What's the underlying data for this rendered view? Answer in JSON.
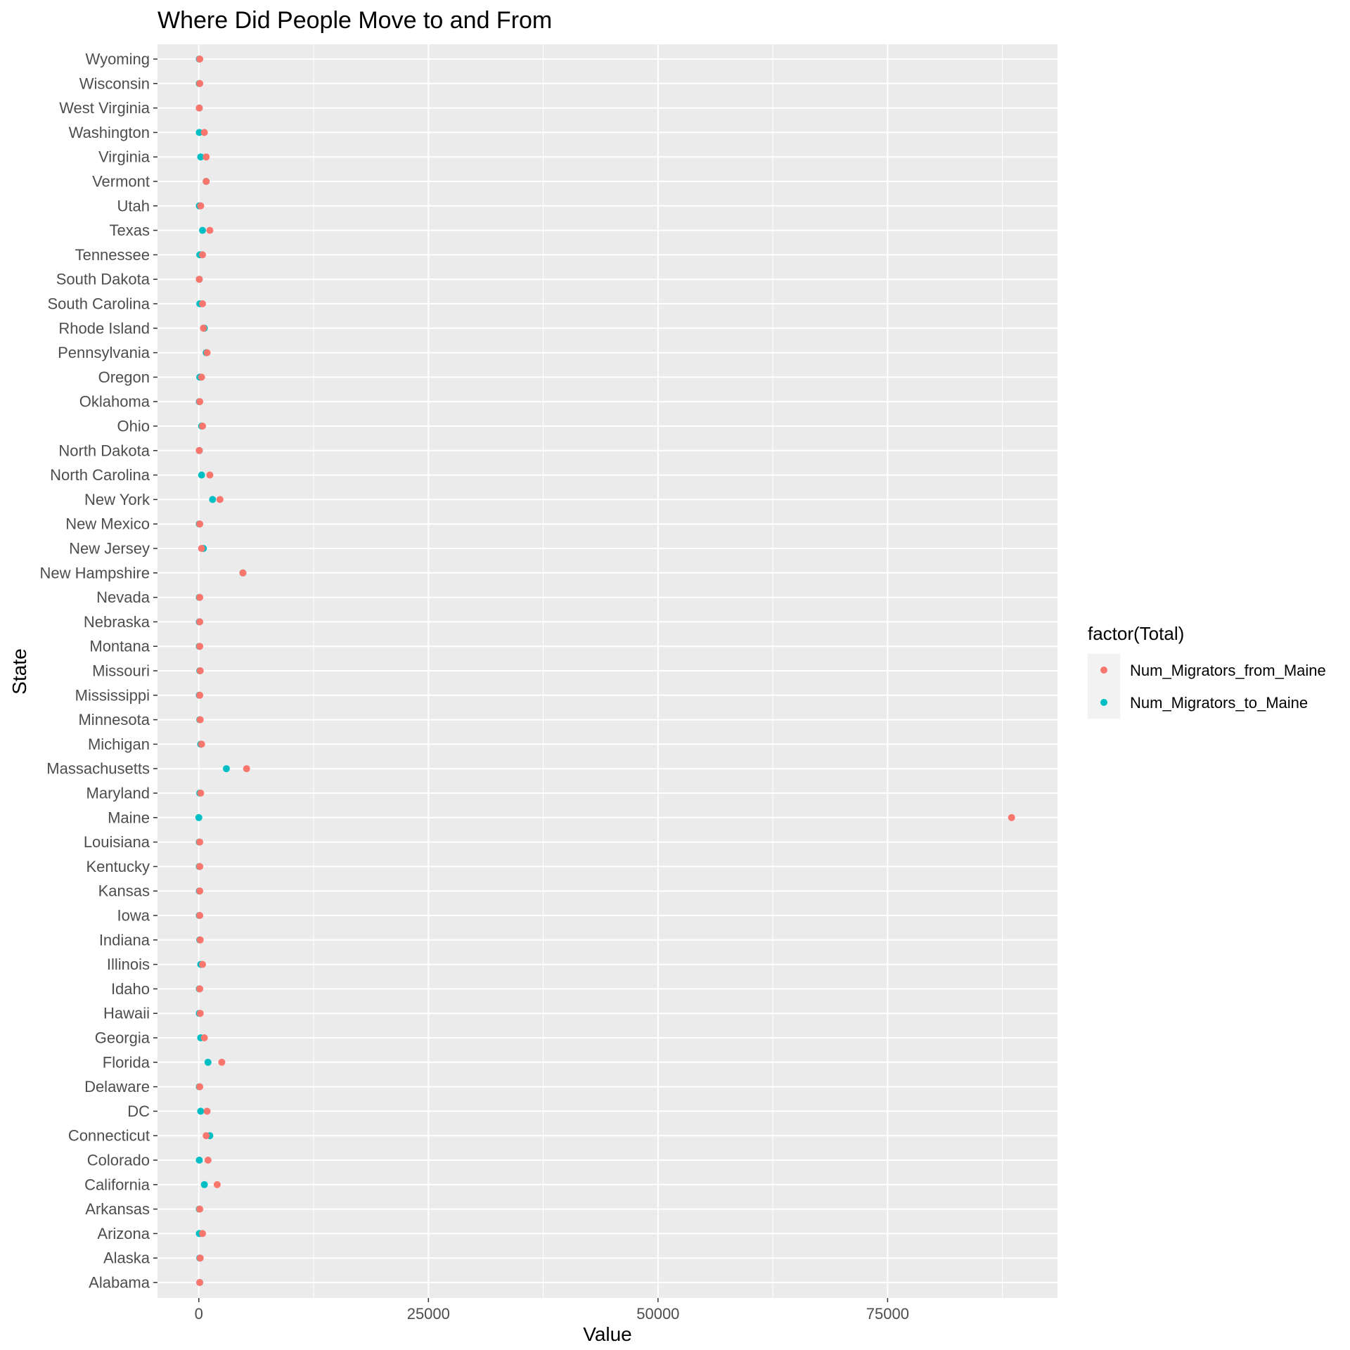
{
  "chart_data": {
    "type": "scatter",
    "title": "Where Did People Move to and From",
    "xlabel": "Value",
    "ylabel": "State",
    "xlim": [
      -4500,
      93500
    ],
    "x_ticks": [
      0,
      25000,
      50000,
      75000
    ],
    "grid": true,
    "legend": {
      "title": "factor(Total)",
      "placement": "right"
    },
    "categories": [
      "Alabama",
      "Alaska",
      "Arizona",
      "Arkansas",
      "California",
      "Colorado",
      "Connecticut",
      "DC",
      "Delaware",
      "Florida",
      "Georgia",
      "Hawaii",
      "Idaho",
      "Illinois",
      "Indiana",
      "Iowa",
      "Kansas",
      "Kentucky",
      "Louisiana",
      "Maine",
      "Maryland",
      "Massachusetts",
      "Michigan",
      "Minnesota",
      "Mississippi",
      "Missouri",
      "Montana",
      "Nebraska",
      "Nevada",
      "New Hampshire",
      "New Jersey",
      "New Mexico",
      "New York",
      "North Carolina",
      "North Dakota",
      "Ohio",
      "Oklahoma",
      "Oregon",
      "Pennsylvania",
      "Rhode Island",
      "South Carolina",
      "South Dakota",
      "Tennessee",
      "Texas",
      "Utah",
      "Vermont",
      "Virginia",
      "Washington",
      "West Virginia",
      "Wisconsin",
      "Wyoming"
    ],
    "series": [
      {
        "name": "Num_Migrators_to_Maine",
        "color": "#00BFC4",
        "values": [
          100,
          100,
          50,
          50,
          600,
          50,
          1200,
          200,
          50,
          1000,
          200,
          50,
          50,
          200,
          100,
          50,
          50,
          50,
          50,
          0,
          100,
          3000,
          200,
          100,
          50,
          100,
          50,
          50,
          50,
          4800,
          500,
          50,
          1500,
          300,
          50,
          300,
          50,
          100,
          800,
          600,
          100,
          50,
          100,
          400,
          50,
          800,
          200,
          50,
          50,
          50,
          50
        ]
      },
      {
        "name": "Num_Migrators_from_Maine",
        "color": "#F8766D",
        "values": [
          100,
          150,
          400,
          100,
          2000,
          1000,
          800,
          900,
          100,
          2500,
          600,
          150,
          100,
          400,
          150,
          100,
          100,
          100,
          100,
          88500,
          200,
          5200,
          300,
          150,
          100,
          150,
          100,
          100,
          100,
          4800,
          300,
          100,
          2300,
          1200,
          50,
          400,
          100,
          300,
          900,
          500,
          400,
          50,
          400,
          1200,
          200,
          800,
          800,
          600,
          50,
          100,
          100
        ]
      }
    ]
  }
}
